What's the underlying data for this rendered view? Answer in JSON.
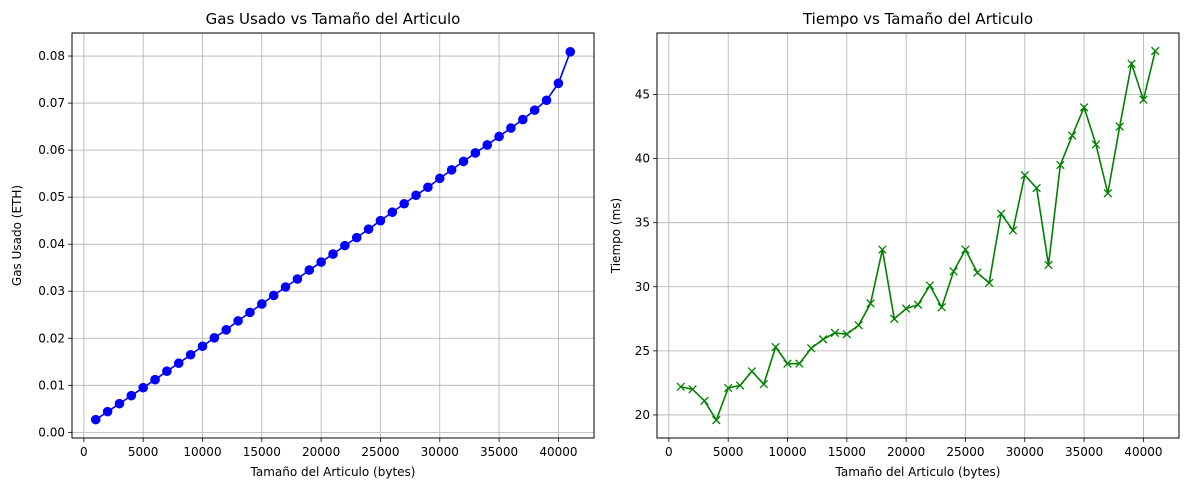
{
  "chart_data": [
    {
      "type": "line",
      "marker": "circle",
      "color": "#0000ff",
      "title": "Gas Usado vs Tamaño del Articulo",
      "xlabel": "Tamaño del Articulo (bytes)",
      "ylabel": "Gas Usado (ETH)",
      "xlim": [
        -1000,
        43000
      ],
      "ylim": [
        -0.0012,
        0.0849
      ],
      "xticks": [
        0,
        5000,
        10000,
        15000,
        20000,
        25000,
        30000,
        35000,
        40000
      ],
      "xtick_labels": [
        "0",
        "5000",
        "10000",
        "15000",
        "20000",
        "25000",
        "30000",
        "35000",
        "40000"
      ],
      "yticks": [
        0,
        0.01,
        0.02,
        0.03,
        0.04,
        0.05,
        0.06,
        0.07,
        0.08
      ],
      "ytick_labels": [
        "0.00",
        "0.01",
        "0.02",
        "0.03",
        "0.04",
        "0.05",
        "0.06",
        "0.07",
        "0.08"
      ],
      "grid": true,
      "x": [
        1000,
        2000,
        3000,
        4000,
        5000,
        6000,
        7000,
        8000,
        9000,
        10000,
        11000,
        12000,
        13000,
        14000,
        15000,
        16000,
        17000,
        18000,
        19000,
        20000,
        21000,
        22000,
        23000,
        24000,
        25000,
        26000,
        27000,
        28000,
        29000,
        30000,
        31000,
        32000,
        33000,
        34000,
        35000,
        36000,
        37000,
        38000,
        39000,
        40000,
        41000
      ],
      "y": [
        0.0027,
        0.0044,
        0.0061,
        0.0078,
        0.0095,
        0.0112,
        0.013,
        0.0147,
        0.0165,
        0.0183,
        0.0201,
        0.0218,
        0.0237,
        0.0255,
        0.0273,
        0.0291,
        0.0309,
        0.0326,
        0.0345,
        0.0362,
        0.0379,
        0.0397,
        0.0414,
        0.0432,
        0.045,
        0.0468,
        0.0486,
        0.0504,
        0.0521,
        0.054,
        0.0558,
        0.0576,
        0.0594,
        0.0611,
        0.0629,
        0.0647,
        0.0665,
        0.0685,
        0.0706,
        0.0742,
        0.0809
      ]
    },
    {
      "type": "line",
      "marker": "x",
      "color": "#008000",
      "title": "Tiempo vs Tamaño del Articulo",
      "xlabel": "Tamaño del Articulo (bytes)",
      "ylabel": "Tiempo (ms)",
      "xlim": [
        -1000,
        43000
      ],
      "ylim": [
        18.2,
        49.8
      ],
      "xticks": [
        0,
        5000,
        10000,
        15000,
        20000,
        25000,
        30000,
        35000,
        40000
      ],
      "xtick_labels": [
        "0",
        "5000",
        "10000",
        "15000",
        "20000",
        "25000",
        "30000",
        "35000",
        "40000"
      ],
      "yticks": [
        20,
        25,
        30,
        35,
        40,
        45
      ],
      "ytick_labels": [
        "20",
        "25",
        "30",
        "35",
        "40",
        "45"
      ],
      "grid": true,
      "x": [
        1000,
        2000,
        3000,
        4000,
        5000,
        6000,
        7000,
        8000,
        9000,
        10000,
        11000,
        12000,
        13000,
        14000,
        15000,
        16000,
        17000,
        18000,
        19000,
        20000,
        21000,
        22000,
        23000,
        24000,
        25000,
        26000,
        27000,
        28000,
        29000,
        30000,
        31000,
        32000,
        33000,
        34000,
        35000,
        36000,
        37000,
        38000,
        39000,
        40000,
        41000
      ],
      "y": [
        22.2,
        22.0,
        21.1,
        19.6,
        22.1,
        22.3,
        23.4,
        22.4,
        25.3,
        24.0,
        24.0,
        25.2,
        25.9,
        26.4,
        26.3,
        27.0,
        28.7,
        32.9,
        27.5,
        28.3,
        28.6,
        30.1,
        28.4,
        31.2,
        32.9,
        31.1,
        30.3,
        35.7,
        34.4,
        38.7,
        37.7,
        31.7,
        39.5,
        41.8,
        44.0,
        41.1,
        37.3,
        42.5,
        47.4,
        44.6,
        48.4
      ]
    }
  ]
}
